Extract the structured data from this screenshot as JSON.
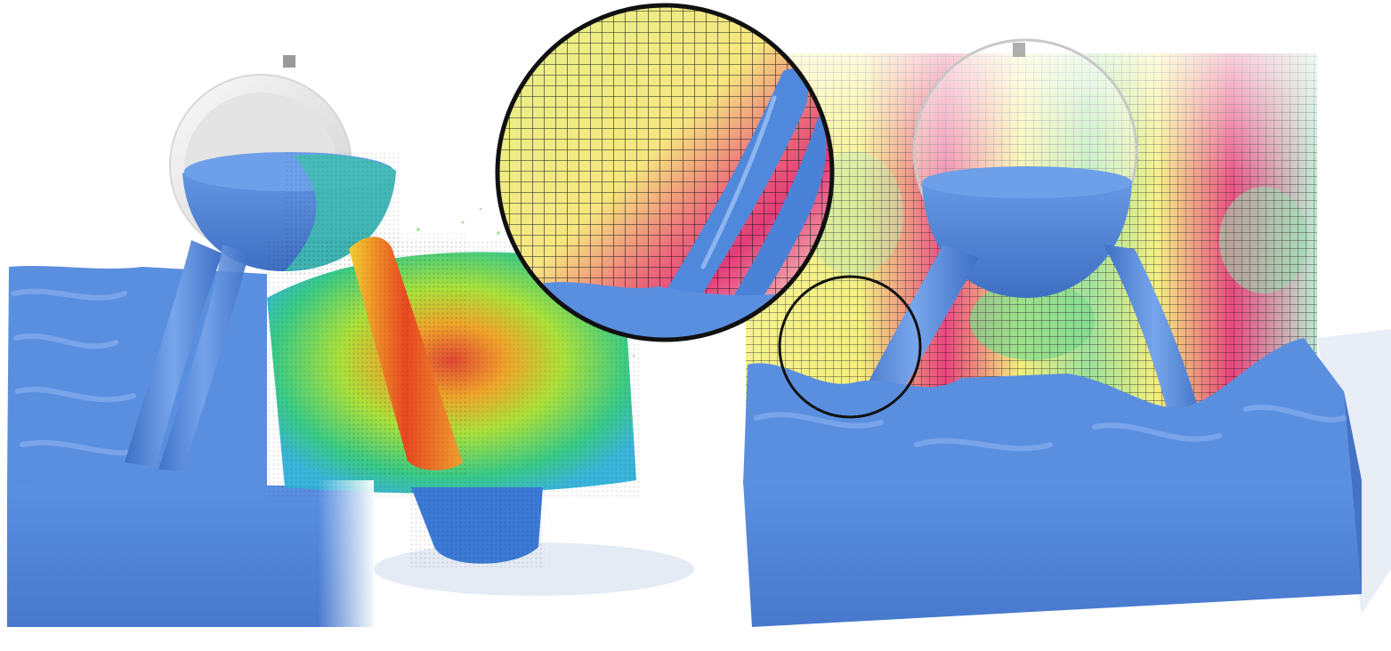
{
  "figure": {
    "panels": [
      {
        "id": "particle-view",
        "subject": "fluid-simulation-with-particle-visualization"
      },
      {
        "id": "zoom-inset",
        "subject": "magnified-grid-detail"
      },
      {
        "id": "grid-view",
        "subject": "fluid-simulation-with-grid-visualization"
      }
    ],
    "colors": {
      "fluid": "#4f86dc",
      "fluid_dark": "#3a6fc4",
      "fluid_light": "#7aa6ea",
      "shell": "#f2f2f2",
      "grid_line": "#1a1a1a",
      "heat_low": "#5fd0c0",
      "heat_mid": "#f4ef7a",
      "heat_high": "#e8407a"
    }
  }
}
